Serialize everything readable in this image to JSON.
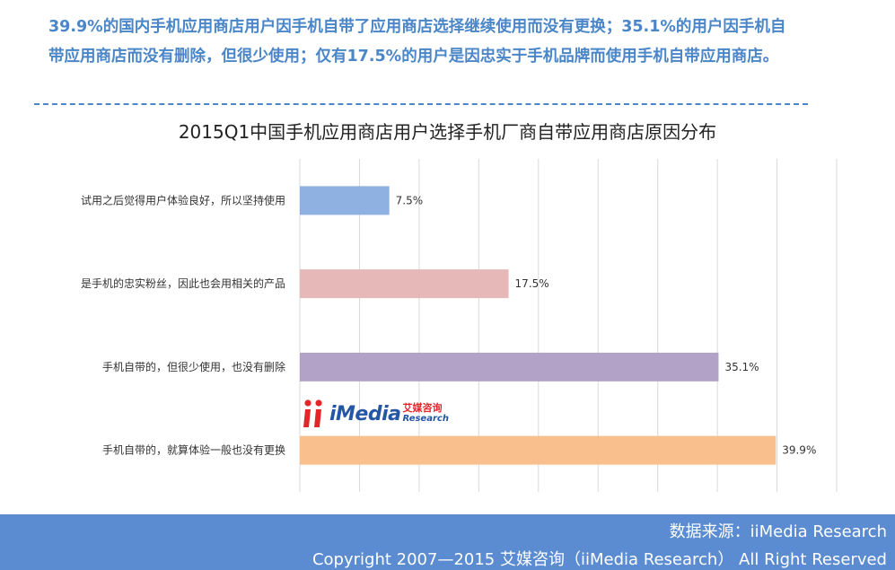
{
  "summary": "39.9%的国内手机应用商店用户因手机自带了应用商店选择继续使用而没有更换；35.1%的用户因手机自带应用商店而没有删除，但很少使用；仅有17.5%的用户是因忠实于手机品牌而使用手机自带应用商店。",
  "logo": {
    "word": "iMedia",
    "cn": "艾媒咨询",
    "en": "Research"
  },
  "footer": {
    "source": "数据来源：iiMedia Research",
    "copyright": "Copyright 2007—2015 艾媒咨询（iiMedia Research） All Right Reserved"
  },
  "colors": {
    "accent": "#4a86c8",
    "footer_bg": "#5b8bd0"
  },
  "chart_data": {
    "type": "bar",
    "orientation": "horizontal",
    "title": "2015Q1中国手机应用商店用户选择手机厂商自带应用商店原因分布",
    "categories": [
      "试用之后觉得用户体验良好，所以坚持使用",
      "是手机的忠实粉丝，因此也会用相关的产品",
      "手机自带的，但很少使用，也没有删除",
      "手机自带的，就算体验一般也没有更换"
    ],
    "values": [
      7.5,
      17.5,
      35.1,
      39.9
    ],
    "value_labels": [
      "7.5%",
      "17.5%",
      "35.1%",
      "39.9%"
    ],
    "colors": [
      "#8eb1e2",
      "#e6b8b7",
      "#b3a2c7",
      "#f9c08e"
    ],
    "xlim": [
      0,
      45
    ],
    "grid": true,
    "legend": "none",
    "xlabel": "",
    "ylabel": ""
  }
}
